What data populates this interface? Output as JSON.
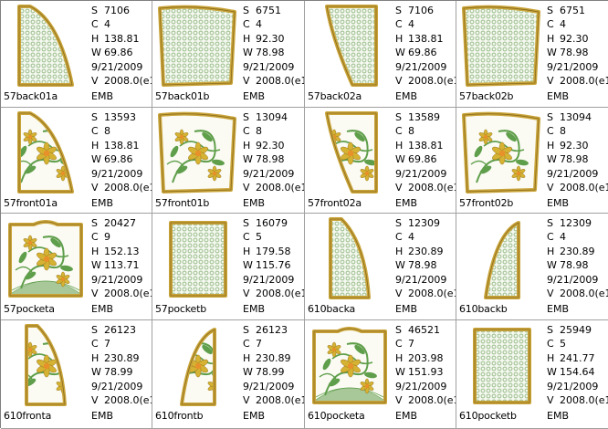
{
  "designs": [
    {
      "name": "57back01a",
      "S": "7106",
      "C": "4",
      "H": "138.81",
      "W": "69.86",
      "date": "9/21/2009",
      "V": "2008.0(e1",
      "format": "EMB",
      "shape": "quarter",
      "fill": "grid"
    },
    {
      "name": "57back01b",
      "S": "6751",
      "C": "4",
      "H": "92.30",
      "W": "78.98",
      "date": "9/21/2009",
      "V": "2008.0(e1",
      "format": "EMB",
      "shape": "panel",
      "fill": "grid"
    },
    {
      "name": "57back02a",
      "S": "7106",
      "C": "4",
      "H": "138.81",
      "W": "69.86",
      "date": "9/21/2009",
      "V": "2008.0(e1",
      "format": "EMB",
      "shape": "quarter-r",
      "fill": "grid"
    },
    {
      "name": "57back02b",
      "S": "6751",
      "C": "4",
      "H": "92.30",
      "W": "78.98",
      "date": "9/21/2009",
      "V": "2008.0(e1",
      "format": "EMB",
      "shape": "panel",
      "fill": "grid"
    },
    {
      "name": "57front01a",
      "S": "13593",
      "C": "8",
      "H": "138.81",
      "W": "69.86",
      "date": "9/21/2009",
      "V": "2008.0(e1",
      "format": "EMB",
      "shape": "quarter",
      "fill": "floral"
    },
    {
      "name": "57front01b",
      "S": "13094",
      "C": "8",
      "H": "92.30",
      "W": "78.98",
      "date": "9/21/2009",
      "V": "2008.0(e1",
      "format": "EMB",
      "shape": "panel",
      "fill": "floral"
    },
    {
      "name": "57front02a",
      "S": "13589",
      "C": "8",
      "H": "138.81",
      "W": "69.86",
      "date": "9/21/2009",
      "V": "2008.0(e1",
      "format": "EMB",
      "shape": "quarter-r",
      "fill": "floral"
    },
    {
      "name": "57front02b",
      "S": "13094",
      "C": "8",
      "H": "92.30",
      "W": "78.98",
      "date": "9/21/2009",
      "V": "2008.0(e1",
      "format": "EMB",
      "shape": "panel",
      "fill": "floral"
    },
    {
      "name": "57pocketa",
      "S": "20427",
      "C": "9",
      "H": "152.13",
      "W": "113.71",
      "date": "9/21/2009",
      "V": "2008.0(e1",
      "format": "EMB",
      "shape": "pocket",
      "fill": "floral"
    },
    {
      "name": "57pocketb",
      "S": "16079",
      "C": "5",
      "H": "179.58",
      "W": "115.76",
      "date": "9/21/2009",
      "V": "2008.0(e1",
      "format": "EMB",
      "shape": "rect-tall",
      "fill": "grid"
    },
    {
      "name": "610backa",
      "S": "12309",
      "C": "4",
      "H": "230.89",
      "W": "78.98",
      "date": "9/21/2009",
      "V": "2008.0(e1",
      "format": "EMB",
      "shape": "narrow",
      "fill": "grid"
    },
    {
      "name": "610backb",
      "S": "12309",
      "C": "4",
      "H": "230.89",
      "W": "78.98",
      "date": "9/21/2009",
      "V": "2008.0(e1",
      "format": "EMB",
      "shape": "narrow-r",
      "fill": "grid"
    },
    {
      "name": "610fronta",
      "S": "26123",
      "C": "7",
      "H": "230.89",
      "W": "78.99",
      "date": "9/21/2009",
      "V": "2008.0(e1",
      "format": "EMB",
      "shape": "narrow",
      "fill": "floral"
    },
    {
      "name": "610frontb",
      "S": "26123",
      "C": "7",
      "H": "230.89",
      "W": "78.99",
      "date": "9/21/2009",
      "V": "2008.0(e1",
      "format": "EMB",
      "shape": "narrow-r",
      "fill": "floral"
    },
    {
      "name": "610pocketa",
      "S": "46521",
      "C": "7",
      "H": "203.98",
      "W": "151.93",
      "date": "9/21/2009",
      "V": "2008.0(e1",
      "format": "EMB",
      "shape": "pocket",
      "fill": "floral"
    },
    {
      "name": "610pocketb",
      "S": "25949",
      "C": "5",
      "H": "241.77",
      "W": "154.64",
      "date": "9/21/2009",
      "V": "2008.0(e1",
      "format": "EMB",
      "shape": "rect-tall",
      "fill": "grid"
    }
  ],
  "labels": {
    "S": "S",
    "C": "C",
    "H": "H",
    "W": "W",
    "V": "V"
  },
  "colors": {
    "gold": "#c9a43a",
    "goldDark": "#8a6a1a",
    "gridGreen": "#9dbf8f",
    "leaf": "#5f9e4a",
    "petal": "#d6b233",
    "grass": "#a8c89a"
  }
}
